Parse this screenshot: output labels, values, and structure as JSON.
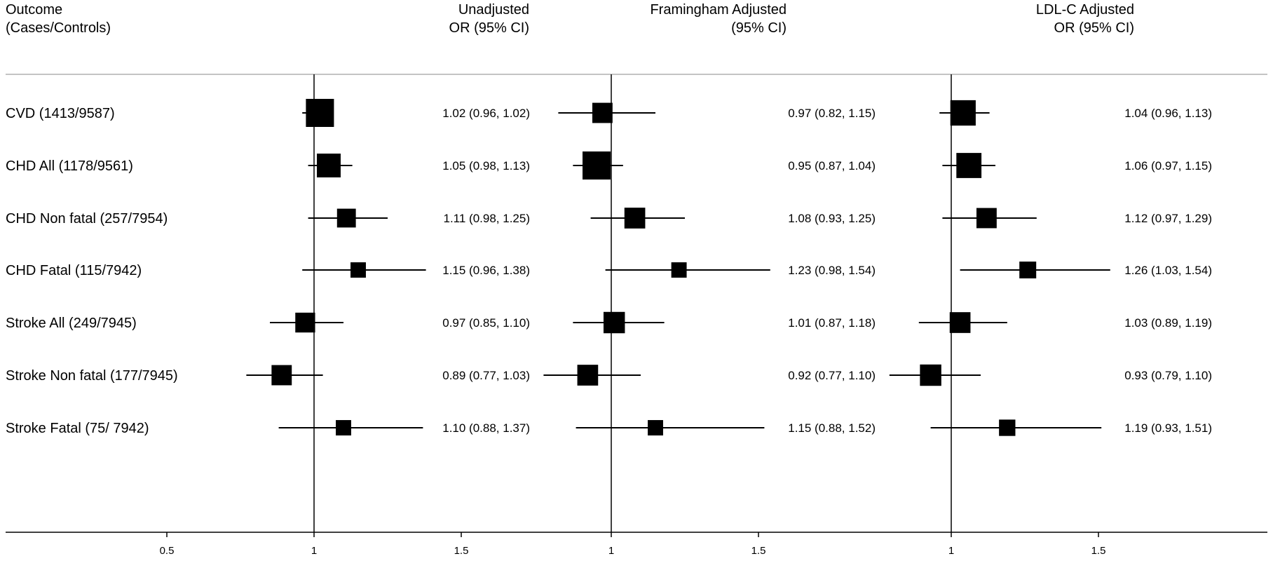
{
  "chart_data": {
    "type": "forest",
    "header": {
      "outcome_line1": "Outcome",
      "outcome_line2": "(Cases/Controls)"
    },
    "panels": [
      {
        "header_line1": "Unadjusted",
        "header_line2": "OR (95% CI)",
        "reference": 1,
        "ticks": [
          "0.5",
          "1",
          "1.5"
        ],
        "rows": [
          {
            "or": 1.02,
            "lo": 0.96,
            "hi": 1.02,
            "label": "1.02 (0.96, 1.02)",
            "weight": 1.0
          },
          {
            "or": 1.05,
            "lo": 0.98,
            "hi": 1.13,
            "label": "1.05 (0.98, 1.13)",
            "weight": 0.72
          },
          {
            "or": 1.11,
            "lo": 0.98,
            "hi": 1.25,
            "label": "1.11 (0.98, 1.25)",
            "weight": 0.45
          },
          {
            "or": 1.15,
            "lo": 0.96,
            "hi": 1.38,
            "label": "1.15 (0.96, 1.38)",
            "weight": 0.3
          },
          {
            "or": 0.97,
            "lo": 0.85,
            "hi": 1.1,
            "label": "0.97 (0.85, 1.10)",
            "weight": 0.5
          },
          {
            "or": 0.89,
            "lo": 0.77,
            "hi": 1.03,
            "label": "0.89 (0.77, 1.03)",
            "weight": 0.52
          },
          {
            "or": 1.1,
            "lo": 0.88,
            "hi": 1.37,
            "label": "1.10 (0.88, 1.37)",
            "weight": 0.3
          }
        ]
      },
      {
        "header_line1": "Framingham Adjusted",
        "header_line2": "(95% CI)",
        "reference": 1,
        "ticks": [
          "1",
          "1.5"
        ],
        "rows": [
          {
            "or": 0.97,
            "lo": 0.82,
            "hi": 1.15,
            "label": "0.97 (0.82, 1.15)",
            "weight": 0.52
          },
          {
            "or": 0.95,
            "lo": 0.87,
            "hi": 1.04,
            "label": "0.95 (0.87, 1.04)",
            "weight": 1.0
          },
          {
            "or": 1.08,
            "lo": 0.93,
            "hi": 1.25,
            "label": "1.08 (0.93, 1.25)",
            "weight": 0.55
          },
          {
            "or": 1.23,
            "lo": 0.98,
            "hi": 1.54,
            "label": "1.23 (0.98, 1.54)",
            "weight": 0.3
          },
          {
            "or": 1.01,
            "lo": 0.87,
            "hi": 1.18,
            "label": "1.01 (0.87, 1.18)",
            "weight": 0.58
          },
          {
            "or": 0.92,
            "lo": 0.77,
            "hi": 1.1,
            "label": "0.92 (0.77, 1.10)",
            "weight": 0.55
          },
          {
            "or": 1.15,
            "lo": 0.88,
            "hi": 1.52,
            "label": "1.15 (0.88, 1.52)",
            "weight": 0.3
          }
        ]
      },
      {
        "header_line1": "LDL-C Adjusted",
        "header_line2": "OR  (95% CI)",
        "reference": 1,
        "ticks": [
          "1",
          "1.5"
        ],
        "rows": [
          {
            "or": 1.04,
            "lo": 0.96,
            "hi": 1.13,
            "label": "1.04 (0.96, 1.13)",
            "weight": 0.82
          },
          {
            "or": 1.06,
            "lo": 0.97,
            "hi": 1.15,
            "label": "1.06 (0.97, 1.15)",
            "weight": 0.8
          },
          {
            "or": 1.12,
            "lo": 0.97,
            "hi": 1.29,
            "label": "1.12 (0.97, 1.29)",
            "weight": 0.52
          },
          {
            "or": 1.26,
            "lo": 1.03,
            "hi": 1.54,
            "label": "1.26 (1.03, 1.54)",
            "weight": 0.36
          },
          {
            "or": 1.03,
            "lo": 0.89,
            "hi": 1.19,
            "label": "1.03 (0.89, 1.19)",
            "weight": 0.55
          },
          {
            "or": 0.93,
            "lo": 0.79,
            "hi": 1.1,
            "label": "0.93 (0.79, 1.10)",
            "weight": 0.58
          },
          {
            "or": 1.19,
            "lo": 0.93,
            "hi": 1.51,
            "label": "1.19 (0.93, 1.51)",
            "weight": 0.34
          }
        ]
      }
    ],
    "outcomes": [
      "CVD (1413/9587)",
      "CHD All (1178/9561)",
      "CHD Non fatal (257/7954)",
      "CHD Fatal (115/7942)",
      "Stroke All (249/7945)",
      "Stroke Non fatal (177/7945)",
      "Stroke Fatal (75/ 7942)"
    ],
    "colors": {
      "ink": "#000000",
      "rule": "#b0b0b0"
    }
  }
}
